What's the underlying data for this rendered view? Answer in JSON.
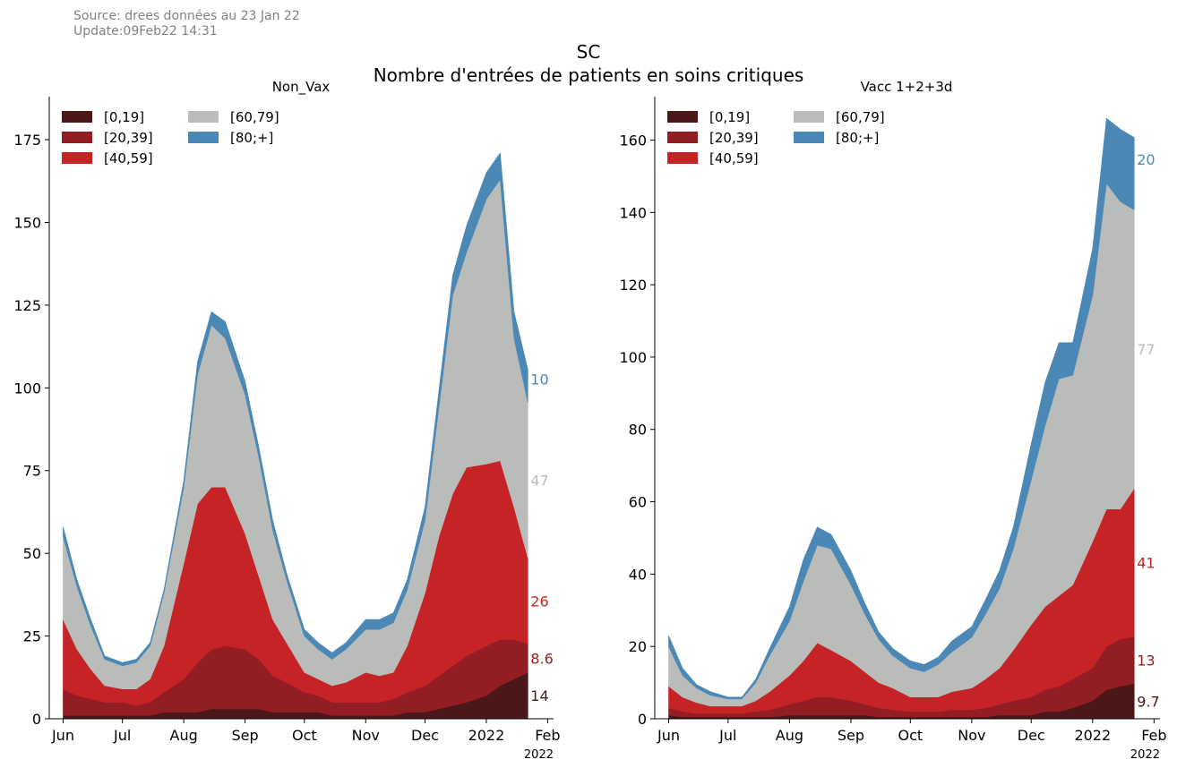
{
  "header": {
    "source": "Source: drees données au 23 Jan 22",
    "update": "Update:09Feb22 14:31",
    "title_line1": "SC",
    "title_line2": "Nombre d'entrées de patients en soins critiques"
  },
  "colors": {
    "[0,19]": "#4c1719",
    "[20,39]": "#921d22",
    "[40,59]": "#c62326",
    "[60,79]": "#b9bcb9",
    "[80;+]": "#4b88b6"
  },
  "chart_data": [
    {
      "type": "area",
      "stacked": true,
      "title": "Non_Vax",
      "xlabel": "",
      "ylabel": "",
      "ylim": [
        0,
        188
      ],
      "yticks": [
        0,
        25,
        50,
        75,
        100,
        125,
        150,
        175
      ],
      "xticks": [
        "Jun",
        "Jul",
        "Aug",
        "Sep",
        "Oct",
        "Nov",
        "Dec",
        "2022",
        "Feb"
      ],
      "x_offset_label": "2022",
      "x_range": [
        "2021-05-25",
        "2022-02-04"
      ],
      "legend": {
        "position": "top-left",
        "entries": [
          "[0,19]",
          "[20,39]",
          "[60,79]",
          "[80;+]",
          "[40,59]"
        ]
      },
      "grid": false,
      "x": [
        "2021-06-01",
        "2021-06-08",
        "2021-06-15",
        "2021-06-22",
        "2021-07-01",
        "2021-07-08",
        "2021-07-15",
        "2021-07-22",
        "2021-08-01",
        "2021-08-08",
        "2021-08-15",
        "2021-08-22",
        "2021-09-01",
        "2021-09-08",
        "2021-09-15",
        "2021-09-22",
        "2021-10-01",
        "2021-10-08",
        "2021-10-15",
        "2021-10-22",
        "2021-11-01",
        "2021-11-08",
        "2021-11-15",
        "2021-11-22",
        "2021-12-01",
        "2021-12-08",
        "2021-12-15",
        "2021-12-22",
        "2022-01-01",
        "2022-01-08",
        "2022-01-15",
        "2022-01-22"
      ],
      "series": [
        {
          "name": "[0,19]",
          "values": [
            1,
            1,
            1,
            1,
            1,
            1,
            1,
            2,
            2,
            2,
            3,
            3,
            3,
            3,
            2,
            2,
            2,
            2,
            1,
            1,
            1,
            1,
            1,
            2,
            2,
            3,
            4,
            5,
            7,
            10,
            12,
            14
          ]
        },
        {
          "name": "[20,39]",
          "values": [
            8,
            6,
            5,
            4,
            4,
            3,
            4,
            6,
            10,
            15,
            18,
            19,
            18,
            15,
            11,
            9,
            6,
            5,
            4,
            4,
            4,
            4,
            5,
            6,
            8,
            10,
            12,
            14,
            15,
            14,
            12,
            8.6
          ]
        },
        {
          "name": "[40,59]",
          "values": [
            21,
            14,
            9,
            5,
            4,
            5,
            7,
            14,
            35,
            48,
            49,
            48,
            35,
            25,
            17,
            12,
            6,
            5,
            5,
            6,
            9,
            8,
            8,
            14,
            28,
            42,
            52,
            57,
            55,
            54,
            40,
            26
          ]
        },
        {
          "name": "[60,79]",
          "values": [
            25,
            19,
            13,
            8,
            7,
            8,
            10,
            16,
            23,
            39,
            49,
            45,
            42,
            36,
            27,
            19,
            11,
            9,
            8,
            10,
            13,
            14,
            15,
            17,
            22,
            39,
            60,
            65,
            80,
            85,
            51,
            47
          ]
        },
        {
          "name": "[80;+]",
          "values": [
            3,
            2,
            2,
            1,
            1,
            1,
            1,
            1,
            2,
            4,
            4,
            5,
            4,
            3,
            3,
            2,
            2,
            2,
            2,
            2,
            3,
            3,
            3,
            3,
            4,
            5,
            6,
            8,
            8,
            8,
            8,
            10
          ]
        }
      ],
      "end_labels": [
        "14",
        "8.6",
        "26",
        "47",
        "10"
      ]
    },
    {
      "type": "area",
      "stacked": true,
      "title": "Vacc 1+2+3d",
      "xlabel": "",
      "ylabel": "",
      "ylim": [
        0,
        172
      ],
      "yticks": [
        0,
        20,
        40,
        60,
        80,
        100,
        120,
        140,
        160
      ],
      "xticks": [
        "Jun",
        "Jul",
        "Aug",
        "Sep",
        "Oct",
        "Nov",
        "Dec",
        "2022",
        "Feb"
      ],
      "x_offset_label": "2022",
      "x_range": [
        "2021-05-25",
        "2022-02-04"
      ],
      "legend": {
        "position": "top-left",
        "entries": [
          "[0,19]",
          "[20,39]",
          "[60,79]",
          "[80;+]",
          "[40,59]"
        ]
      },
      "grid": false,
      "x": [
        "2021-06-01",
        "2021-06-08",
        "2021-06-15",
        "2021-06-22",
        "2021-07-01",
        "2021-07-08",
        "2021-07-15",
        "2021-07-22",
        "2021-08-01",
        "2021-08-08",
        "2021-08-15",
        "2021-08-22",
        "2021-09-01",
        "2021-09-08",
        "2021-09-15",
        "2021-09-22",
        "2021-10-01",
        "2021-10-08",
        "2021-10-15",
        "2021-10-22",
        "2021-11-01",
        "2021-11-08",
        "2021-11-15",
        "2021-11-22",
        "2021-12-01",
        "2021-12-08",
        "2021-12-15",
        "2021-12-22",
        "2022-01-01",
        "2022-01-08",
        "2022-01-15",
        "2022-01-22"
      ],
      "series": [
        {
          "name": "[0,19]",
          "values": [
            1,
            0.5,
            0.5,
            0.5,
            0.5,
            0.5,
            0.5,
            0.5,
            1,
            1,
            1,
            1,
            1,
            1,
            0.5,
            0.5,
            0.5,
            0.5,
            0.5,
            0.5,
            0.5,
            0.5,
            1,
            1,
            1,
            2,
            2,
            3,
            5,
            8,
            9,
            9.7
          ]
        },
        {
          "name": "[20,39]",
          "values": [
            2,
            1.5,
            1,
            1,
            1,
            1,
            1.5,
            2,
            3,
            4,
            5,
            5,
            4,
            3,
            2.5,
            2,
            1.5,
            1.5,
            1.5,
            2,
            2,
            2.5,
            3,
            4,
            5,
            6,
            7,
            8,
            9,
            12,
            13,
            13
          ]
        },
        {
          "name": "[40,59]",
          "values": [
            6,
            4,
            3,
            2,
            2,
            2,
            3,
            5,
            8,
            11,
            15,
            13,
            11,
            9,
            7,
            6,
            4,
            4,
            4,
            5,
            6,
            8,
            10,
            14,
            20,
            23,
            25,
            26,
            35,
            38,
            36,
            41
          ]
        },
        {
          "name": "[60,79]",
          "values": [
            11,
            6,
            4,
            3,
            2,
            2,
            5,
            10,
            15,
            22,
            27,
            28,
            21,
            16,
            12,
            9,
            8,
            7,
            9,
            11,
            14,
            18,
            22,
            28,
            40,
            50,
            60,
            58,
            68,
            90,
            85,
            77
          ]
        },
        {
          "name": "[80;+]",
          "values": [
            3,
            2,
            1,
            1,
            0.5,
            0.5,
            1,
            2,
            4,
            6,
            5,
            4,
            4,
            3,
            2,
            2,
            2,
            2,
            2,
            3,
            3,
            4,
            5,
            6,
            10,
            12,
            10,
            9,
            13,
            18,
            20,
            20
          ]
        }
      ],
      "end_labels": [
        "9.7",
        "13",
        "41",
        "77",
        "20"
      ]
    }
  ]
}
